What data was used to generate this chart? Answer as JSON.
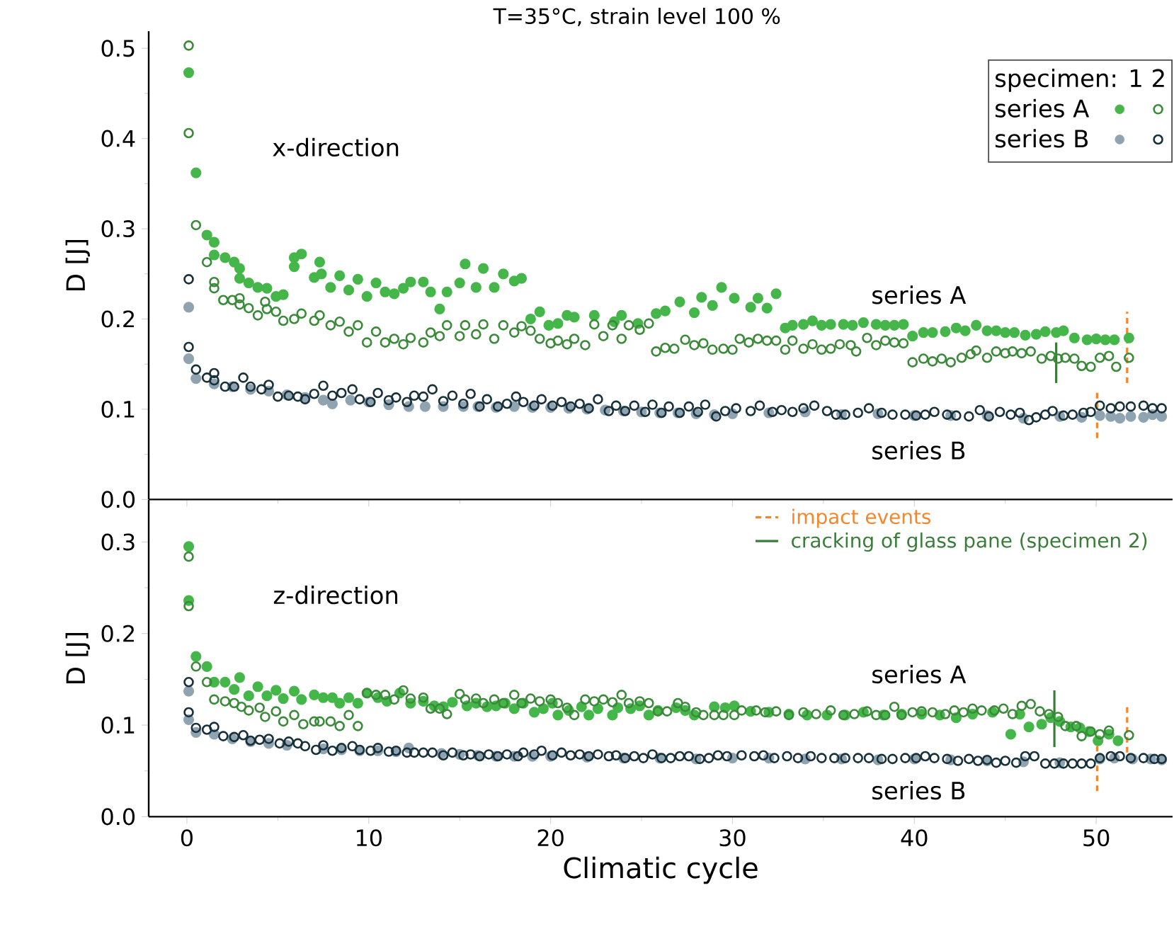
{
  "chart_data": [
    {
      "type": "scatter",
      "title": "T=35°C, strain level 100 %",
      "ylabel": "D [J]",
      "xlim": [
        -2.1,
        54.2
      ],
      "xticks": [
        0,
        10,
        20,
        30,
        40,
        50
      ],
      "ylim": [
        0,
        0.519
      ],
      "yticks": [
        {
          "value": 0,
          "label": "0.0"
        },
        0.1,
        0.2,
        0.3,
        0.4,
        0.5
      ],
      "tick_labels": "y",
      "legend": "top right",
      "legend_title": "specimen: 1 2",
      "annotations": [
        "x-direction",
        "series A",
        "series B"
      ],
      "series": [
        {
          "name": "series A",
          "color": "#45b649",
          "marker": "circle",
          "x": [
            0.1,
            0.5,
            1.1,
            1.5,
            1.5,
            2.1,
            2.6,
            2.9,
            2.9,
            3.4,
            3.9,
            4.4,
            4.9,
            5.3,
            5.9,
            5.9,
            6.3,
            7.0,
            7.3,
            7.4,
            7.9,
            8.4,
            8.9,
            9.4,
            9.9,
            10.4,
            10.9,
            11.4,
            11.9,
            12.3,
            13.0,
            13.4,
            13.9,
            14.3,
            15.0,
            15.3,
            15.9,
            16.3,
            16.9,
            17.4,
            18.0,
            18.4,
            18.9,
            19.4,
            19.9,
            20.4,
            20.9,
            21.3,
            22.4,
            23.5,
            23.9,
            24.8,
            25.8,
            26.3,
            27.1,
            27.9,
            28.3,
            28.9,
            29.4,
            30.1,
            31.0,
            31.4,
            31.9,
            32.4,
            32.9,
            33.3,
            33.9,
            34.4,
            34.9,
            35.4,
            36.1,
            36.6,
            37.2,
            37.9,
            38.4,
            38.9,
            39.4,
            39.9,
            40.5,
            41.0,
            41.7,
            42.3,
            42.8,
            43.4,
            44.0,
            44.5,
            45.0,
            45.5,
            46.1,
            46.7,
            47.2,
            47.8,
            48.2,
            48.8,
            49.5,
            50.0,
            50.5,
            51.0,
            51.8
          ],
          "values": [
            0.473,
            0.362,
            0.293,
            0.285,
            0.271,
            0.268,
            0.263,
            0.256,
            0.245,
            0.24,
            0.235,
            0.234,
            0.225,
            0.227,
            0.268,
            0.258,
            0.272,
            0.246,
            0.263,
            0.25,
            0.235,
            0.248,
            0.232,
            0.244,
            0.225,
            0.24,
            0.23,
            0.228,
            0.234,
            0.241,
            0.241,
            0.23,
            0.211,
            0.23,
            0.24,
            0.261,
            0.235,
            0.256,
            0.235,
            0.25,
            0.242,
            0.245,
            0.2,
            0.208,
            0.193,
            0.195,
            0.204,
            0.202,
            0.204,
            0.197,
            0.204,
            0.195,
            0.206,
            0.209,
            0.219,
            0.207,
            0.224,
            0.215,
            0.235,
            0.223,
            0.213,
            0.223,
            0.212,
            0.228,
            0.19,
            0.193,
            0.194,
            0.198,
            0.193,
            0.194,
            0.194,
            0.193,
            0.196,
            0.194,
            0.193,
            0.193,
            0.194,
            0.181,
            0.185,
            0.185,
            0.186,
            0.19,
            0.187,
            0.193,
            0.187,
            0.187,
            0.185,
            0.185,
            0.182,
            0.183,
            0.186,
            0.185,
            0.187,
            0.179,
            0.177,
            0.178,
            0.177,
            0.177,
            0.179
          ]
        },
        {
          "color": "#3a8a3a",
          "marker": "open circle",
          "x": [
            0.1,
            0.1,
            0.5,
            1.1,
            1.5,
            1.5,
            2.0,
            2.5,
            2.9,
            2.9,
            3.4,
            3.9,
            4.3,
            4.4,
            4.9,
            5.3,
            5.9,
            6.3,
            7.0,
            7.3,
            7.9,
            8.4,
            8.9,
            9.4,
            9.9,
            10.4,
            10.9,
            11.4,
            11.9,
            12.3,
            13.0,
            13.4,
            13.9,
            14.3,
            15.0,
            15.3,
            15.9,
            16.3,
            16.9,
            17.4,
            18.0,
            18.4,
            18.9,
            19.4,
            20.0,
            20.4,
            20.9,
            21.3,
            21.9,
            22.4,
            22.9,
            23.4,
            23.9,
            24.3,
            24.9,
            25.4,
            25.8,
            26.3,
            26.8,
            27.4,
            27.9,
            28.4,
            28.9,
            29.5,
            30.0,
            30.4,
            30.9,
            31.4,
            31.9,
            32.4,
            32.9,
            33.3,
            33.9,
            34.4,
            34.9,
            35.4,
            35.9,
            36.5,
            36.8,
            37.4,
            37.9,
            38.4,
            38.9,
            39.4,
            39.9,
            40.5,
            41.0,
            41.5,
            42.0,
            42.6,
            43.1,
            43.4,
            44.0,
            44.5,
            45.0,
            45.4,
            45.9,
            46.4,
            47.0,
            47.5,
            47.9,
            48.3,
            48.8,
            49.2,
            49.7,
            50.2,
            50.7,
            51.1,
            51.8
          ],
          "values": [
            0.503,
            0.406,
            0.304,
            0.263,
            0.241,
            0.234,
            0.221,
            0.221,
            0.223,
            0.216,
            0.212,
            0.204,
            0.219,
            0.211,
            0.208,
            0.198,
            0.2,
            0.206,
            0.198,
            0.204,
            0.193,
            0.197,
            0.186,
            0.193,
            0.174,
            0.186,
            0.174,
            0.178,
            0.172,
            0.179,
            0.174,
            0.185,
            0.181,
            0.193,
            0.181,
            0.193,
            0.183,
            0.194,
            0.178,
            0.193,
            0.185,
            0.192,
            0.187,
            0.178,
            0.173,
            0.176,
            0.172,
            0.178,
            0.171,
            0.194,
            0.181,
            0.193,
            0.178,
            0.193,
            0.188,
            0.195,
            0.164,
            0.168,
            0.167,
            0.177,
            0.171,
            0.173,
            0.166,
            0.167,
            0.166,
            0.178,
            0.174,
            0.178,
            0.176,
            0.176,
            0.166,
            0.176,
            0.167,
            0.172,
            0.166,
            0.167,
            0.172,
            0.171,
            0.164,
            0.179,
            0.171,
            0.176,
            0.174,
            0.173,
            0.152,
            0.156,
            0.153,
            0.156,
            0.152,
            0.157,
            0.161,
            0.165,
            0.157,
            0.164,
            0.162,
            0.164,
            0.162,
            0.164,
            0.156,
            0.159,
            0.156,
            0.157,
            0.156,
            0.148,
            0.147,
            0.157,
            0.159,
            0.147,
            0.157
          ]
        },
        {
          "name": "series B",
          "color": "#8fa3b1",
          "marker": "circle",
          "x": [
            0.1,
            0.1,
            0.5,
            1.5,
            2.5,
            3.5,
            4.5,
            5.5,
            6.5,
            7.5,
            8.0,
            9.0,
            10.0,
            11.1,
            12.2,
            13.1,
            14.1,
            15.2,
            16.0,
            17.0,
            18.0,
            19.0,
            20.0,
            21.0,
            22.0,
            23.0,
            24.0,
            25.0,
            26.0,
            27.0,
            28.0,
            29.0,
            30.0,
            32.0,
            34.0,
            36.0,
            38.0,
            40.0,
            42.0,
            44.0,
            46.0,
            48.0,
            49.2,
            50.2,
            50.8,
            51.3,
            51.9,
            52.6,
            53.1,
            53.6
          ],
          "values": [
            0.213,
            0.156,
            0.134,
            0.128,
            0.125,
            0.122,
            0.12,
            0.116,
            0.113,
            0.11,
            0.106,
            0.11,
            0.108,
            0.105,
            0.103,
            0.103,
            0.103,
            0.103,
            0.103,
            0.102,
            0.103,
            0.102,
            0.102,
            0.101,
            0.1,
            0.099,
            0.098,
            0.097,
            0.096,
            0.096,
            0.095,
            0.094,
            0.095,
            0.096,
            0.097,
            0.094,
            0.095,
            0.093,
            0.093,
            0.093,
            0.09,
            0.092,
            0.091,
            0.093,
            0.092,
            0.09,
            0.092,
            0.091,
            0.094,
            0.092
          ]
        },
        {
          "color": "#17303a",
          "marker": "open circle",
          "x": [
            0.1,
            0.1,
            0.5,
            1.1,
            1.5,
            1.5,
            2.1,
            2.6,
            3.1,
            3.5,
            4.1,
            4.5,
            5.0,
            5.6,
            6.1,
            6.5,
            7.0,
            7.5,
            8.0,
            8.5,
            9.1,
            9.5,
            10.1,
            10.5,
            11.1,
            11.5,
            12.1,
            12.5,
            13.0,
            13.5,
            14.1,
            14.6,
            15.2,
            15.6,
            16.1,
            16.5,
            17.1,
            17.6,
            18.1,
            18.5,
            19.1,
            19.5,
            20.1,
            20.6,
            21.1,
            21.6,
            22.1,
            22.6,
            23.2,
            23.6,
            24.1,
            24.6,
            25.2,
            25.6,
            26.1,
            26.5,
            27.1,
            27.6,
            28.1,
            28.5,
            29.1,
            29.6,
            30.2,
            31.0,
            31.5,
            32.2,
            32.7,
            33.3,
            33.9,
            34.5,
            35.2,
            35.7,
            36.2,
            36.9,
            37.5,
            38.2,
            38.8,
            39.5,
            40.1,
            40.6,
            41.1,
            41.8,
            42.3,
            43.0,
            43.6,
            44.1,
            44.7,
            45.3,
            45.8,
            46.3,
            46.7,
            47.2,
            47.6,
            48.2,
            48.7,
            49.3,
            49.7,
            50.2,
            50.8,
            51.3,
            51.9,
            52.6,
            53.1,
            53.6
          ],
          "values": [
            0.244,
            0.169,
            0.144,
            0.135,
            0.14,
            0.132,
            0.125,
            0.125,
            0.135,
            0.125,
            0.122,
            0.127,
            0.114,
            0.115,
            0.114,
            0.111,
            0.117,
            0.126,
            0.115,
            0.118,
            0.122,
            0.111,
            0.108,
            0.118,
            0.11,
            0.113,
            0.108,
            0.115,
            0.114,
            0.122,
            0.109,
            0.115,
            0.106,
            0.117,
            0.103,
            0.111,
            0.103,
            0.106,
            0.114,
            0.108,
            0.104,
            0.111,
            0.104,
            0.108,
            0.103,
            0.106,
            0.101,
            0.111,
            0.098,
            0.104,
            0.098,
            0.104,
            0.097,
            0.105,
            0.096,
            0.103,
            0.096,
            0.103,
            0.097,
            0.105,
            0.092,
            0.098,
            0.101,
            0.098,
            0.104,
            0.097,
            0.099,
            0.097,
            0.101,
            0.104,
            0.098,
            0.094,
            0.094,
            0.096,
            0.101,
            0.096,
            0.094,
            0.094,
            0.093,
            0.094,
            0.097,
            0.094,
            0.093,
            0.092,
            0.099,
            0.092,
            0.097,
            0.094,
            0.096,
            0.088,
            0.091,
            0.094,
            0.098,
            0.093,
            0.094,
            0.096,
            0.097,
            0.104,
            0.101,
            0.103,
            0.103,
            0.104,
            0.101,
            0.101
          ]
        },
        {
          "type": "line",
          "color": "#f5862a",
          "line_style": "dashed",
          "marker": "none",
          "x": [
            50.05,
            50.05,
            50.9,
            51.7,
            51.7
          ],
          "values": [
            0.068,
            0.122,
            null,
            0.129,
            0.208
          ]
        },
        {
          "type": "line",
          "color": "#3a7d3a",
          "line_style": "solid",
          "marker": "none",
          "x": [
            47.8,
            47.8
          ],
          "values": [
            0.129,
            0.174
          ]
        }
      ]
    },
    {
      "type": "scatter",
      "xlabel": "Climatic cycle",
      "ylabel": "D [J]",
      "xlim": [
        -2.1,
        54.2
      ],
      "xticks": [
        0,
        10,
        20,
        30,
        40,
        50
      ],
      "ylim": [
        0,
        0.346
      ],
      "yticks": [
        {
          "value": 0,
          "label": "0.0"
        },
        0.1,
        0.2,
        0.3
      ],
      "legend": "top right",
      "annotations": [
        "z-direction",
        "series A",
        "series B"
      ],
      "series": [
        {
          "color": "#45b649",
          "marker": "circle",
          "x": [
            0.1,
            0.1,
            0.5,
            1.1,
            1.5,
            2.1,
            2.6,
            2.9,
            3.4,
            3.9,
            4.4,
            4.9,
            5.3,
            5.9,
            6.3,
            7.0,
            7.5,
            8.0,
            8.4,
            8.9,
            9.4,
            9.9,
            10.5,
            11.0,
            11.7,
            12.3,
            13.0,
            13.6,
            14.1,
            14.6,
            15.4,
            15.9,
            16.5,
            17.0,
            17.5,
            18.0,
            18.5,
            19.1,
            19.6,
            20.1,
            20.4,
            21.0,
            21.7,
            22.1,
            22.6,
            23.4,
            23.7,
            24.4,
            24.9,
            25.4,
            25.9,
            26.9,
            27.4,
            27.9,
            29.0,
            29.6,
            30.1,
            31.0,
            32.0,
            33.1,
            34.1,
            35.2,
            36.2,
            37.2,
            38.3,
            39.3,
            40.4,
            41.4,
            42.3,
            43.2,
            44.3,
            45.3,
            45.8,
            46.3,
            47.0,
            47.5,
            48.0,
            48.6,
            49.1,
            49.6,
            50.1,
            50.7,
            51.2
          ],
          "values": [
            0.295,
            0.236,
            0.175,
            0.164,
            0.147,
            0.147,
            0.139,
            0.152,
            0.132,
            0.142,
            0.132,
            0.138,
            0.129,
            0.137,
            0.128,
            0.133,
            0.13,
            0.13,
            0.124,
            0.13,
            0.124,
            0.135,
            0.13,
            0.126,
            0.135,
            0.124,
            0.126,
            0.121,
            0.12,
            0.125,
            0.121,
            0.124,
            0.12,
            0.121,
            0.124,
            0.118,
            0.124,
            0.114,
            0.118,
            0.124,
            0.111,
            0.116,
            0.12,
            0.111,
            0.118,
            0.111,
            0.119,
            0.118,
            0.121,
            0.111,
            0.116,
            0.119,
            0.116,
            0.111,
            0.12,
            0.119,
            0.121,
            0.115,
            0.114,
            0.112,
            0.111,
            0.111,
            0.111,
            0.114,
            0.111,
            0.112,
            0.112,
            0.111,
            0.108,
            0.112,
            0.114,
            0.09,
            0.112,
            0.098,
            0.101,
            0.108,
            0.104,
            0.098,
            0.097,
            0.093,
            0.083,
            0.09,
            0.083
          ]
        },
        {
          "color": "#3a8a3a",
          "marker": "open circle",
          "x": [
            0.1,
            0.1,
            0.5,
            1.1,
            1.5,
            2.1,
            2.6,
            3.0,
            3.4,
            4.0,
            4.3,
            4.9,
            5.3,
            5.9,
            6.4,
            7.0,
            7.3,
            7.9,
            8.4,
            8.9,
            9.4,
            9.9,
            10.4,
            10.9,
            11.4,
            11.9,
            12.3,
            13.0,
            13.4,
            13.9,
            14.3,
            15.0,
            15.3,
            15.9,
            16.3,
            16.9,
            17.4,
            18.0,
            18.4,
            18.9,
            19.4,
            20.0,
            20.4,
            20.9,
            21.3,
            21.9,
            22.4,
            22.9,
            23.4,
            23.9,
            24.3,
            24.9,
            25.4,
            25.9,
            26.4,
            27.0,
            27.4,
            28.0,
            28.4,
            29.0,
            29.5,
            30.1,
            30.5,
            31.3,
            31.8,
            32.4,
            33.1,
            33.9,
            34.6,
            35.4,
            36.1,
            36.7,
            37.4,
            37.9,
            38.4,
            38.9,
            39.3,
            39.9,
            40.4,
            41.0,
            41.7,
            42.2,
            42.7,
            43.2,
            43.7,
            44.4,
            44.9,
            45.4,
            45.9,
            46.4,
            46.9,
            47.4,
            47.9,
            48.3,
            48.9,
            49.2,
            49.7,
            50.2,
            50.7,
            51.8
          ],
          "values": [
            0.284,
            0.23,
            0.164,
            0.147,
            0.128,
            0.126,
            0.124,
            0.12,
            0.116,
            0.119,
            0.109,
            0.115,
            0.104,
            0.111,
            0.101,
            0.104,
            0.104,
            0.104,
            0.099,
            0.111,
            0.099,
            0.135,
            0.133,
            0.133,
            0.128,
            0.138,
            0.129,
            0.13,
            0.118,
            0.118,
            0.112,
            0.134,
            0.128,
            0.129,
            0.124,
            0.128,
            0.124,
            0.133,
            0.124,
            0.129,
            0.126,
            0.128,
            0.124,
            0.119,
            0.111,
            0.128,
            0.126,
            0.128,
            0.125,
            0.133,
            0.124,
            0.126,
            0.124,
            0.115,
            0.115,
            0.124,
            0.12,
            0.114,
            0.111,
            0.111,
            0.111,
            0.111,
            0.116,
            0.116,
            0.114,
            0.115,
            0.111,
            0.114,
            0.112,
            0.116,
            0.111,
            0.112,
            0.115,
            0.111,
            0.111,
            0.12,
            0.111,
            0.114,
            0.115,
            0.114,
            0.112,
            0.116,
            0.114,
            0.118,
            0.116,
            0.116,
            0.118,
            0.112,
            0.121,
            0.123,
            0.115,
            0.112,
            0.109,
            0.099,
            0.099,
            0.088,
            0.093,
            0.09,
            0.094,
            0.089
          ]
        },
        {
          "color": "#8fa3b1",
          "marker": "circle",
          "x": [
            0.1,
            0.1,
            0.5,
            1.5,
            2.5,
            3.5,
            4.5,
            5.5,
            6.5,
            7.5,
            8.5,
            9.5,
            10.5,
            11.5,
            12.2,
            13.0,
            14.0,
            15.0,
            16.0,
            17.0,
            18.0,
            19.0,
            20.0,
            22.0,
            24.0,
            26.0,
            28.0,
            30.0,
            32.0,
            34.0,
            36.0,
            38.0,
            40.0,
            42.0,
            44.0,
            46.0,
            48.0,
            49.7,
            50.2,
            51.0,
            52.0,
            53.0,
            53.6
          ],
          "values": [
            0.137,
            0.106,
            0.092,
            0.09,
            0.085,
            0.082,
            0.08,
            0.078,
            null,
            0.074,
            0.073,
            0.072,
            0.072,
            0.071,
            0.075,
            null,
            0.069,
            0.068,
            0.067,
            0.066,
            0.066,
            0.066,
            0.066,
            0.065,
            0.064,
            0.064,
            0.063,
            0.064,
            0.064,
            0.063,
            0.063,
            0.062,
            0.063,
            0.062,
            0.061,
            0.06,
            0.059,
            null,
            0.063,
            0.064,
            0.063,
            0.063,
            0.062
          ]
        },
        {
          "color": "#17303a",
          "marker": "open circle",
          "x": [
            0.1,
            0.1,
            0.5,
            1.1,
            1.5,
            2.0,
            2.6,
            3.1,
            3.5,
            4.0,
            4.5,
            5.1,
            5.6,
            6.1,
            6.5,
            7.1,
            7.5,
            8.0,
            8.5,
            9.1,
            9.5,
            10.1,
            10.5,
            11.1,
            11.5,
            12.1,
            12.5,
            13.0,
            13.5,
            14.1,
            14.6,
            15.2,
            15.6,
            16.1,
            16.6,
            17.1,
            17.6,
            18.2,
            18.5,
            19.1,
            19.5,
            20.1,
            20.6,
            21.1,
            21.6,
            22.1,
            22.6,
            23.2,
            23.6,
            24.1,
            24.6,
            25.1,
            25.6,
            26.1,
            26.6,
            27.1,
            27.6,
            28.2,
            28.7,
            29.2,
            29.7,
            30.5,
            31.2,
            31.7,
            32.3,
            33.0,
            33.6,
            34.3,
            34.9,
            35.6,
            36.2,
            36.9,
            37.5,
            38.2,
            38.8,
            39.5,
            40.1,
            40.6,
            41.1,
            41.8,
            42.4,
            43.0,
            43.5,
            44.0,
            44.5,
            45.0,
            45.6,
            46.1,
            46.6,
            47.2,
            47.7,
            48.2,
            48.7,
            49.2,
            49.7,
            50.2,
            50.8,
            51.3,
            51.9,
            52.6,
            53.2,
            53.6
          ],
          "values": [
            0.147,
            0.114,
            0.097,
            0.095,
            0.098,
            0.088,
            0.087,
            0.089,
            0.083,
            0.084,
            0.085,
            0.08,
            0.082,
            0.08,
            0.077,
            0.073,
            0.078,
            0.072,
            0.075,
            0.077,
            0.073,
            0.072,
            0.075,
            0.071,
            0.072,
            0.07,
            0.07,
            0.07,
            0.07,
            0.067,
            0.07,
            0.067,
            0.068,
            0.066,
            0.068,
            0.066,
            0.068,
            0.066,
            0.07,
            0.068,
            0.072,
            0.067,
            0.07,
            0.067,
            0.068,
            0.066,
            0.068,
            0.066,
            0.067,
            0.064,
            0.066,
            0.064,
            0.068,
            0.064,
            0.064,
            0.066,
            0.066,
            0.063,
            0.064,
            0.067,
            0.066,
            0.067,
            0.066,
            0.067,
            0.064,
            0.066,
            0.064,
            0.066,
            0.064,
            0.064,
            0.064,
            0.064,
            0.064,
            0.063,
            0.063,
            0.064,
            0.064,
            0.066,
            0.064,
            0.063,
            0.061,
            0.063,
            0.061,
            0.062,
            0.059,
            0.061,
            0.059,
            0.066,
            0.066,
            0.058,
            0.058,
            0.058,
            0.058,
            0.058,
            0.058,
            0.064,
            0.066,
            0.066,
            0.064,
            0.064,
            0.063,
            0.063
          ]
        },
        {
          "type": "line",
          "name": "impact events",
          "color": "#f5862a",
          "line_style": "dashed",
          "marker": "none",
          "x": [
            50.05,
            50.05,
            50.9,
            51.7,
            51.7
          ],
          "values": [
            0.028,
            0.077,
            null,
            0.07,
            0.121
          ]
        },
        {
          "type": "line",
          "name": "cracking of glass pane (specimen 2)",
          "color": "#3a7d3a",
          "line_style": "solid",
          "marker": "none",
          "x": [
            47.7,
            47.7
          ],
          "values": [
            0.076,
            0.138
          ]
        }
      ]
    }
  ]
}
